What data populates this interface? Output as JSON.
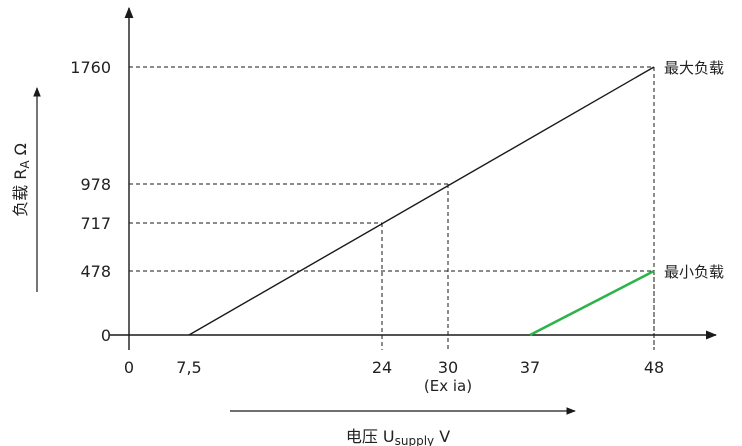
{
  "chart_data": {
    "type": "line",
    "xlabel": {
      "main": "电压 U",
      "sub": "supply",
      "unit": " V"
    },
    "ylabel": {
      "main": "负载 R",
      "sub": "A",
      "unit": " Ω"
    },
    "x_ticks": [
      "0",
      "7,5",
      "24",
      "30",
      "37",
      "48"
    ],
    "x_tick_values": [
      0,
      7.5,
      24,
      30,
      37,
      48
    ],
    "y_ticks": [
      "0",
      "478",
      "717",
      "978",
      "1760"
    ],
    "y_tick_values": [
      0,
      478,
      717,
      978,
      1760
    ],
    "annotations": [
      {
        "text": "(Ex ia)",
        "x": 30,
        "y": 0
      },
      {
        "text": "最大负载",
        "x": 48,
        "y": 1760
      },
      {
        "text": "最小负载",
        "x": 48,
        "y": 478
      }
    ],
    "guides": [
      {
        "x": 24,
        "y": 717
      },
      {
        "x": 30,
        "y": 978
      },
      {
        "x": 48,
        "y": 1760
      },
      {
        "x": 48,
        "y": 478
      }
    ],
    "series": [
      {
        "name": "最大负载",
        "color": "#1a1a1a",
        "points": [
          [
            7.5,
            0
          ],
          [
            48,
            1760
          ]
        ]
      },
      {
        "name": "最小负载",
        "color": "#2db34a",
        "points": [
          [
            37,
            0
          ],
          [
            48,
            478
          ]
        ]
      }
    ],
    "grid": false
  }
}
